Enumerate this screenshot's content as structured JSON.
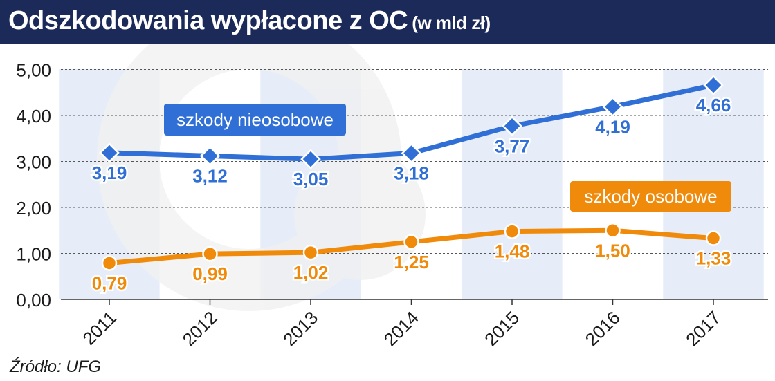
{
  "header": {
    "title": "Odszkodowania wypłacone z OC",
    "unit": "(w mld zł)"
  },
  "source": "Źródło: UFG",
  "colors": {
    "title_bg": "#1b2a59",
    "blue": "#2f6fd6",
    "orange": "#f08a0b",
    "stripe": "#e6edf8",
    "watermark": "#f0f0f0"
  },
  "chart_data": {
    "type": "line",
    "categories": [
      "2011",
      "2012",
      "2013",
      "2014",
      "2015",
      "2016",
      "2017"
    ],
    "series": [
      {
        "name": "szkody nieosobowe",
        "values": [
          3.19,
          3.12,
          3.05,
          3.18,
          3.77,
          4.19,
          4.66
        ],
        "labels": [
          "3,19",
          "3,12",
          "3,05",
          "3,18",
          "3,77",
          "4,19",
          "4,66"
        ],
        "color": "#2f6fd6",
        "marker": "diamond"
      },
      {
        "name": "szkody osobowe",
        "values": [
          0.79,
          0.99,
          1.02,
          1.25,
          1.48,
          1.5,
          1.33
        ],
        "labels": [
          "0,79",
          "0,99",
          "1,02",
          "1,25",
          "1,48",
          "1,50",
          "1,33"
        ],
        "color": "#f08a0b",
        "marker": "circle"
      }
    ],
    "ylim": [
      0,
      5
    ],
    "yticks": [
      "0,00",
      "1,00",
      "2,00",
      "3,00",
      "4,00",
      "5,00"
    ],
    "grid": true,
    "legend": "inline labels"
  }
}
